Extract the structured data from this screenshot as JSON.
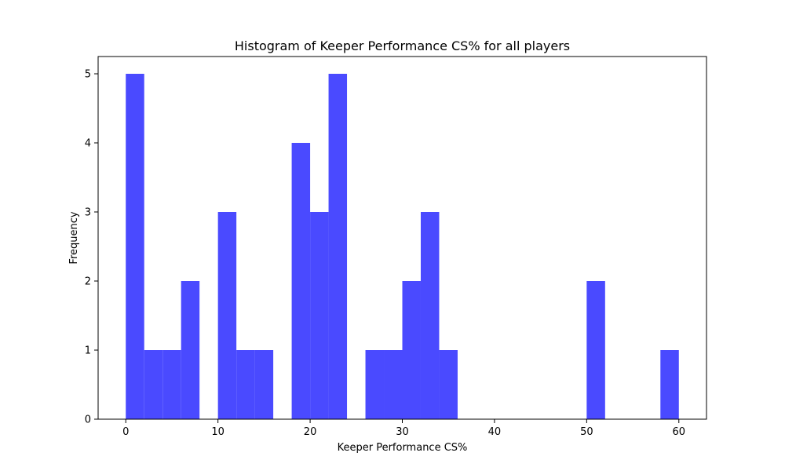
{
  "chart_data": {
    "type": "histogram",
    "title": "Histogram of Keeper Performance CS% for all players",
    "xlabel": "Keeper Performance CS%",
    "ylabel": "Frequency",
    "xlim": [
      -3,
      63
    ],
    "ylim": [
      0,
      5.25
    ],
    "x_ticks": [
      0,
      10,
      20,
      30,
      40,
      50,
      60
    ],
    "y_ticks": [
      0,
      1,
      2,
      3,
      4,
      5
    ],
    "bar_color": "#4a4aff",
    "bins": [
      {
        "start": 0,
        "end": 2,
        "count": 5
      },
      {
        "start": 2,
        "end": 4,
        "count": 1
      },
      {
        "start": 4,
        "end": 6,
        "count": 1
      },
      {
        "start": 6,
        "end": 8,
        "count": 2
      },
      {
        "start": 8,
        "end": 10,
        "count": 0
      },
      {
        "start": 10,
        "end": 12,
        "count": 3
      },
      {
        "start": 12,
        "end": 14,
        "count": 1
      },
      {
        "start": 14,
        "end": 16,
        "count": 1
      },
      {
        "start": 16,
        "end": 18,
        "count": 0
      },
      {
        "start": 18,
        "end": 20,
        "count": 4
      },
      {
        "start": 20,
        "end": 22,
        "count": 3
      },
      {
        "start": 22,
        "end": 24,
        "count": 5
      },
      {
        "start": 24,
        "end": 26,
        "count": 0
      },
      {
        "start": 26,
        "end": 28,
        "count": 1
      },
      {
        "start": 28,
        "end": 30,
        "count": 1
      },
      {
        "start": 30,
        "end": 32,
        "count": 2
      },
      {
        "start": 32,
        "end": 34,
        "count": 3
      },
      {
        "start": 34,
        "end": 36,
        "count": 1
      },
      {
        "start": 36,
        "end": 38,
        "count": 0
      },
      {
        "start": 38,
        "end": 40,
        "count": 0
      },
      {
        "start": 40,
        "end": 42,
        "count": 0
      },
      {
        "start": 42,
        "end": 44,
        "count": 0
      },
      {
        "start": 44,
        "end": 46,
        "count": 0
      },
      {
        "start": 46,
        "end": 48,
        "count": 0
      },
      {
        "start": 48,
        "end": 50,
        "count": 0
      },
      {
        "start": 50,
        "end": 52,
        "count": 2
      },
      {
        "start": 52,
        "end": 54,
        "count": 0
      },
      {
        "start": 54,
        "end": 56,
        "count": 0
      },
      {
        "start": 56,
        "end": 58,
        "count": 0
      },
      {
        "start": 58,
        "end": 60,
        "count": 1
      }
    ]
  }
}
